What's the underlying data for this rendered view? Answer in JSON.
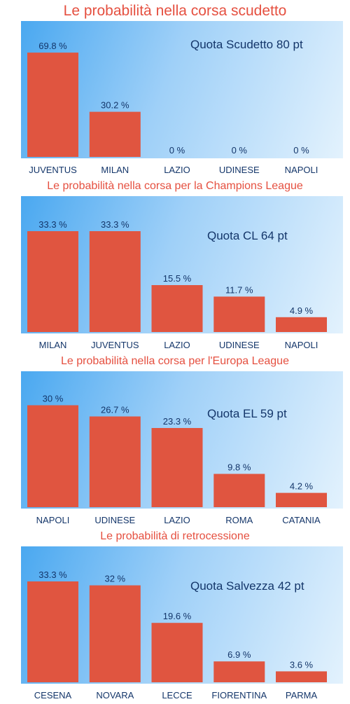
{
  "chart_data": [
    {
      "type": "bar",
      "title": "Le probabilità nella corsa scudetto",
      "annotation": "Quota Scudetto 80 pt",
      "categories": [
        "JUVENTUS",
        "MILAN",
        "LAZIO",
        "UDINESE",
        "NAPOLI"
      ],
      "values": [
        69.8,
        30.2,
        0,
        0,
        0
      ],
      "value_labels": [
        "69.8 %",
        "30.2 %",
        "0 %",
        "0 %",
        "0 %"
      ],
      "ylim": [
        0,
        75
      ],
      "bar_color": "#e05540"
    },
    {
      "type": "bar",
      "title": "Le probabilità nella corsa per la Champions League",
      "annotation": "Quota CL 64 pt",
      "categories": [
        "MILAN",
        "JUVENTUS",
        "LAZIO",
        "UDINESE",
        "NAPOLI"
      ],
      "values": [
        33.3,
        33.3,
        15.5,
        11.7,
        4.9
      ],
      "value_labels": [
        "33.3 %",
        "33.3 %",
        "15.5 %",
        "11.7 %",
        "4.9 %"
      ],
      "ylim": [
        0,
        37
      ],
      "bar_color": "#e05540"
    },
    {
      "type": "bar",
      "title": "Le probabilità nella corsa per l'Europa League",
      "annotation": "Quota EL 59 pt",
      "categories": [
        "NAPOLI",
        "UDINESE",
        "LAZIO",
        "ROMA",
        "CATANIA"
      ],
      "values": [
        30,
        26.7,
        23.3,
        9.8,
        4.2
      ],
      "value_labels": [
        "30 %",
        "26.7 %",
        "23.3 %",
        "9.8 %",
        "4.2 %"
      ],
      "ylim": [
        0,
        33
      ],
      "bar_color": "#e05540"
    },
    {
      "type": "bar",
      "title": "Le probabilità di retrocessione",
      "annotation": "Quota Salvezza 42 pt",
      "categories": [
        "CESENA",
        "NOVARA",
        "LECCE",
        "FIORENTINA",
        "PARMA"
      ],
      "values": [
        33.3,
        32,
        19.6,
        6.9,
        3.6
      ],
      "value_labels": [
        "33.3 %",
        "32 %",
        "19.6 %",
        "6.9 %",
        "3.6 %"
      ],
      "ylim": [
        0,
        37
      ],
      "bar_color": "#e05540"
    }
  ]
}
